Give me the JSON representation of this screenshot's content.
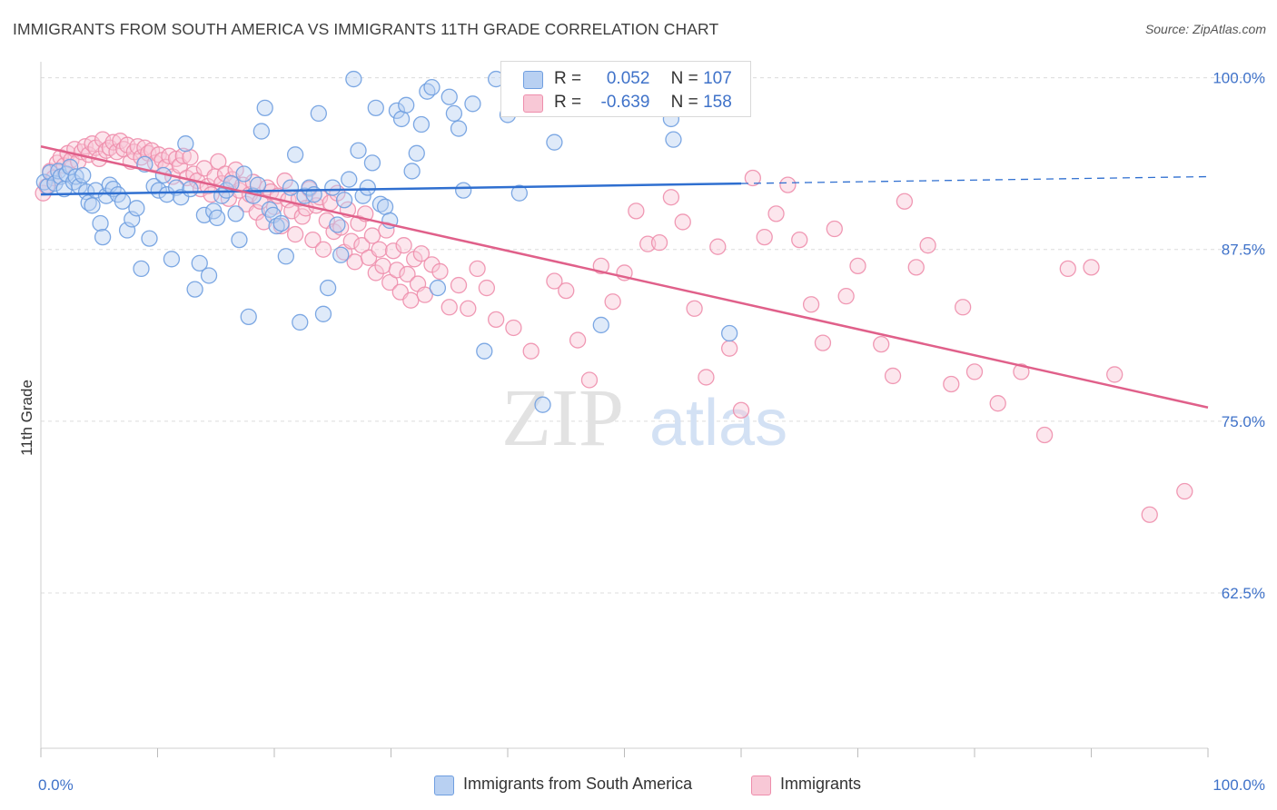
{
  "title": "IMMIGRANTS FROM SOUTH AMERICA VS IMMIGRANTS 11TH GRADE CORRELATION CHART",
  "source": "Source: ZipAtlas.com",
  "watermark": {
    "zip": "ZIP",
    "atlas": "atlas"
  },
  "colors": {
    "blue": "#6f9ee0",
    "blue_fill": "#b8d0f2",
    "blue_line": "#2f6fd0",
    "pink": "#ee8eac",
    "pink_fill": "#f8c8d6",
    "pink_line": "#e0608a",
    "grid": "#dcdcdc",
    "axis_text": "#3f72c9"
  },
  "stats": [
    {
      "r_label": "R =",
      "r_value": "0.052",
      "n_label": "N =",
      "n_value": "107",
      "color": "blue"
    },
    {
      "r_label": "R =",
      "r_value": "-0.639",
      "n_label": "N =",
      "n_value": "158",
      "color": "pink"
    }
  ],
  "chart_data": {
    "type": "scatter",
    "xlabel": "",
    "ylabel": "11th Grade",
    "xlim": [
      0,
      100
    ],
    "ylim": [
      51.2,
      100.5
    ],
    "x_tick_labels": [
      "0.0%",
      "100.0%"
    ],
    "y_ticks": [
      100.0,
      87.5,
      75.0,
      62.5
    ],
    "y_tick_labels": [
      "100.0%",
      "87.5%",
      "75.0%",
      "62.5%"
    ],
    "grid": "horizontal dashed",
    "legend_position": "bottom",
    "series": [
      {
        "name": "Immigrants from South America",
        "color": "blue",
        "trend": {
          "x": [
            0,
            60,
            100
          ],
          "y": [
            91.5,
            92.3,
            92.8
          ],
          "solid_until": 60
        },
        "points": [
          [
            0.3,
            92.4
          ],
          [
            0.6,
            92.1
          ],
          [
            0.8,
            93.1
          ],
          [
            1.2,
            92.3
          ],
          [
            1.5,
            93.2
          ],
          [
            1.7,
            92.8
          ],
          [
            2.0,
            91.9
          ],
          [
            2.2,
            93.0
          ],
          [
            2.5,
            93.5
          ],
          [
            2.8,
            92.4
          ],
          [
            3.0,
            92.8
          ],
          [
            3.3,
            92.1
          ],
          [
            3.6,
            92.9
          ],
          [
            3.9,
            91.7
          ],
          [
            4.1,
            90.9
          ],
          [
            4.4,
            90.7
          ],
          [
            4.7,
            91.8
          ],
          [
            5.1,
            89.4
          ],
          [
            5.3,
            88.4
          ],
          [
            5.6,
            91.4
          ],
          [
            5.9,
            92.2
          ],
          [
            6.2,
            91.9
          ],
          [
            6.6,
            91.5
          ],
          [
            7.0,
            91.0
          ],
          [
            7.4,
            88.9
          ],
          [
            7.8,
            89.7
          ],
          [
            8.2,
            90.5
          ],
          [
            8.6,
            86.1
          ],
          [
            8.9,
            93.7
          ],
          [
            9.3,
            88.3
          ],
          [
            9.7,
            92.1
          ],
          [
            10.1,
            91.8
          ],
          [
            10.5,
            92.9
          ],
          [
            10.8,
            91.5
          ],
          [
            11.2,
            86.8
          ],
          [
            11.6,
            92.0
          ],
          [
            12.0,
            91.3
          ],
          [
            12.4,
            95.2
          ],
          [
            12.8,
            91.9
          ],
          [
            13.2,
            84.6
          ],
          [
            13.6,
            86.5
          ],
          [
            14.0,
            90.0
          ],
          [
            14.4,
            85.6
          ],
          [
            14.8,
            90.3
          ],
          [
            15.1,
            89.8
          ],
          [
            15.5,
            91.4
          ],
          [
            15.9,
            91.8
          ],
          [
            16.3,
            92.3
          ],
          [
            16.7,
            90.1
          ],
          [
            17.0,
            88.2
          ],
          [
            17.4,
            93.0
          ],
          [
            17.8,
            82.6
          ],
          [
            18.2,
            91.4
          ],
          [
            18.6,
            92.2
          ],
          [
            18.9,
            96.1
          ],
          [
            19.2,
            97.8
          ],
          [
            19.6,
            90.4
          ],
          [
            19.9,
            90.0
          ],
          [
            20.2,
            89.2
          ],
          [
            20.6,
            89.4
          ],
          [
            21.0,
            87.0
          ],
          [
            21.4,
            92.0
          ],
          [
            21.8,
            94.4
          ],
          [
            22.2,
            82.2
          ],
          [
            22.6,
            91.4
          ],
          [
            23.0,
            92.0
          ],
          [
            23.4,
            91.5
          ],
          [
            23.8,
            97.4
          ],
          [
            24.2,
            82.8
          ],
          [
            24.6,
            84.7
          ],
          [
            25.0,
            92.0
          ],
          [
            25.4,
            89.3
          ],
          [
            25.7,
            87.1
          ],
          [
            26.0,
            91.1
          ],
          [
            26.4,
            92.6
          ],
          [
            26.8,
            99.9
          ],
          [
            27.2,
            94.7
          ],
          [
            27.6,
            91.4
          ],
          [
            28.0,
            92.0
          ],
          [
            28.4,
            93.8
          ],
          [
            28.7,
            97.8
          ],
          [
            29.1,
            90.8
          ],
          [
            29.5,
            90.6
          ],
          [
            29.9,
            89.6
          ],
          [
            30.5,
            97.6
          ],
          [
            30.9,
            97.0
          ],
          [
            31.3,
            98.0
          ],
          [
            31.8,
            93.2
          ],
          [
            32.2,
            94.5
          ],
          [
            32.6,
            96.6
          ],
          [
            33.1,
            99.0
          ],
          [
            33.5,
            99.3
          ],
          [
            34.0,
            84.7
          ],
          [
            35.0,
            98.6
          ],
          [
            35.4,
            97.4
          ],
          [
            35.8,
            96.3
          ],
          [
            36.2,
            91.8
          ],
          [
            37.0,
            98.1
          ],
          [
            38.0,
            80.1
          ],
          [
            39.0,
            99.9
          ],
          [
            40.0,
            97.3
          ],
          [
            41.0,
            91.6
          ],
          [
            43.0,
            76.2
          ],
          [
            44.0,
            95.3
          ],
          [
            48.0,
            82.0
          ],
          [
            54.0,
            97.0
          ],
          [
            54.2,
            95.5
          ],
          [
            59.0,
            81.4
          ]
        ]
      },
      {
        "name": "Immigrants",
        "color": "pink",
        "trend": {
          "x": [
            0,
            100
          ],
          "y": [
            95.0,
            76.0
          ]
        },
        "points": [
          [
            0.2,
            91.6
          ],
          [
            0.5,
            92.1
          ],
          [
            0.8,
            93.2
          ],
          [
            1.1,
            92.7
          ],
          [
            1.4,
            93.8
          ],
          [
            1.7,
            94.2
          ],
          [
            2.0,
            93.6
          ],
          [
            2.3,
            94.5
          ],
          [
            2.6,
            94.0
          ],
          [
            2.9,
            94.8
          ],
          [
            3.2,
            93.9
          ],
          [
            3.5,
            94.6
          ],
          [
            3.8,
            95.0
          ],
          [
            4.1,
            94.4
          ],
          [
            4.4,
            95.2
          ],
          [
            4.7,
            94.9
          ],
          [
            5.0,
            94.1
          ],
          [
            5.3,
            95.5
          ],
          [
            5.6,
            94.7
          ],
          [
            5.9,
            94.9
          ],
          [
            6.2,
            95.3
          ],
          [
            6.5,
            94.6
          ],
          [
            6.8,
            95.4
          ],
          [
            7.1,
            94.8
          ],
          [
            7.4,
            95.1
          ],
          [
            7.7,
            93.9
          ],
          [
            8.0,
            94.6
          ],
          [
            8.3,
            95.0
          ],
          [
            8.6,
            94.2
          ],
          [
            8.9,
            94.9
          ],
          [
            9.2,
            94.5
          ],
          [
            9.5,
            94.7
          ],
          [
            9.8,
            93.8
          ],
          [
            10.1,
            94.4
          ],
          [
            10.4,
            94.0
          ],
          [
            10.7,
            93.5
          ],
          [
            11.0,
            94.3
          ],
          [
            11.3,
            92.8
          ],
          [
            11.6,
            94.1
          ],
          [
            11.9,
            93.6
          ],
          [
            12.2,
            94.3
          ],
          [
            12.5,
            92.7
          ],
          [
            12.8,
            94.2
          ],
          [
            13.1,
            93.0
          ],
          [
            13.4,
            92.5
          ],
          [
            13.7,
            91.9
          ],
          [
            14.0,
            93.4
          ],
          [
            14.3,
            92.1
          ],
          [
            14.6,
            91.5
          ],
          [
            14.9,
            92.8
          ],
          [
            15.2,
            93.9
          ],
          [
            15.5,
            92.3
          ],
          [
            15.8,
            93.0
          ],
          [
            16.1,
            91.2
          ],
          [
            16.4,
            92.6
          ],
          [
            16.7,
            93.3
          ],
          [
            17.0,
            91.8
          ],
          [
            17.3,
            92.2
          ],
          [
            17.6,
            90.8
          ],
          [
            17.9,
            91.5
          ],
          [
            18.2,
            92.4
          ],
          [
            18.5,
            90.2
          ],
          [
            18.8,
            91.0
          ],
          [
            19.1,
            89.5
          ],
          [
            19.4,
            92.0
          ],
          [
            19.7,
            91.7
          ],
          [
            20.0,
            90.6
          ],
          [
            20.3,
            91.4
          ],
          [
            20.6,
            89.2
          ],
          [
            20.9,
            92.5
          ],
          [
            21.2,
            91.1
          ],
          [
            21.5,
            90.3
          ],
          [
            21.8,
            88.6
          ],
          [
            22.1,
            91.2
          ],
          [
            22.4,
            89.9
          ],
          [
            22.7,
            90.5
          ],
          [
            23.0,
            91.9
          ],
          [
            23.3,
            88.2
          ],
          [
            23.6,
            90.7
          ],
          [
            23.9,
            91.3
          ],
          [
            24.2,
            87.5
          ],
          [
            24.5,
            89.6
          ],
          [
            24.8,
            90.9
          ],
          [
            25.1,
            88.8
          ],
          [
            25.4,
            91.6
          ],
          [
            25.7,
            89.1
          ],
          [
            26.0,
            87.3
          ],
          [
            26.3,
            90.4
          ],
          [
            26.6,
            88.1
          ],
          [
            26.9,
            86.6
          ],
          [
            27.2,
            89.4
          ],
          [
            27.5,
            87.8
          ],
          [
            27.8,
            90.1
          ],
          [
            28.1,
            86.9
          ],
          [
            28.4,
            88.5
          ],
          [
            28.7,
            85.8
          ],
          [
            29.0,
            87.5
          ],
          [
            29.3,
            86.3
          ],
          [
            29.6,
            88.9
          ],
          [
            29.9,
            85.1
          ],
          [
            30.2,
            87.4
          ],
          [
            30.5,
            86.0
          ],
          [
            30.8,
            84.4
          ],
          [
            31.1,
            87.8
          ],
          [
            31.4,
            85.7
          ],
          [
            31.7,
            83.8
          ],
          [
            32.0,
            86.8
          ],
          [
            32.3,
            85.0
          ],
          [
            32.6,
            87.2
          ],
          [
            32.9,
            84.2
          ],
          [
            33.5,
            86.4
          ],
          [
            34.2,
            85.9
          ],
          [
            35.0,
            83.3
          ],
          [
            35.8,
            84.9
          ],
          [
            36.6,
            83.2
          ],
          [
            37.4,
            86.1
          ],
          [
            38.2,
            84.7
          ],
          [
            39.0,
            82.4
          ],
          [
            40.5,
            81.8
          ],
          [
            42.0,
            80.1
          ],
          [
            44.0,
            85.2
          ],
          [
            45.0,
            84.5
          ],
          [
            46.0,
            80.9
          ],
          [
            47.0,
            78.0
          ],
          [
            48.0,
            86.3
          ],
          [
            49.0,
            83.7
          ],
          [
            50.0,
            85.8
          ],
          [
            51.0,
            90.3
          ],
          [
            52.0,
            87.9
          ],
          [
            53.0,
            88.0
          ],
          [
            54.0,
            91.3
          ],
          [
            55.0,
            89.5
          ],
          [
            56.0,
            83.2
          ],
          [
            57.0,
            78.2
          ],
          [
            58.0,
            87.7
          ],
          [
            59.0,
            80.3
          ],
          [
            60.0,
            75.8
          ],
          [
            61.0,
            92.7
          ],
          [
            62.0,
            88.4
          ],
          [
            63.0,
            90.1
          ],
          [
            64.0,
            92.2
          ],
          [
            65.0,
            88.2
          ],
          [
            66.0,
            83.5
          ],
          [
            67.0,
            80.7
          ],
          [
            68.0,
            89.0
          ],
          [
            69.0,
            84.1
          ],
          [
            70.0,
            86.3
          ],
          [
            72.0,
            80.6
          ],
          [
            73.0,
            78.3
          ],
          [
            74.0,
            91.0
          ],
          [
            75.0,
            86.2
          ],
          [
            76.0,
            87.8
          ],
          [
            78.0,
            77.7
          ],
          [
            79.0,
            83.3
          ],
          [
            80.0,
            78.6
          ],
          [
            82.0,
            76.3
          ],
          [
            84.0,
            78.6
          ],
          [
            86.0,
            74.0
          ],
          [
            88.0,
            86.1
          ],
          [
            90.0,
            86.2
          ],
          [
            92.0,
            78.4
          ],
          [
            95.0,
            68.2
          ],
          [
            98.0,
            69.9
          ]
        ]
      }
    ]
  },
  "legend": [
    {
      "label": "Immigrants from South America",
      "color": "blue"
    },
    {
      "label": "Immigrants",
      "color": "pink"
    }
  ]
}
